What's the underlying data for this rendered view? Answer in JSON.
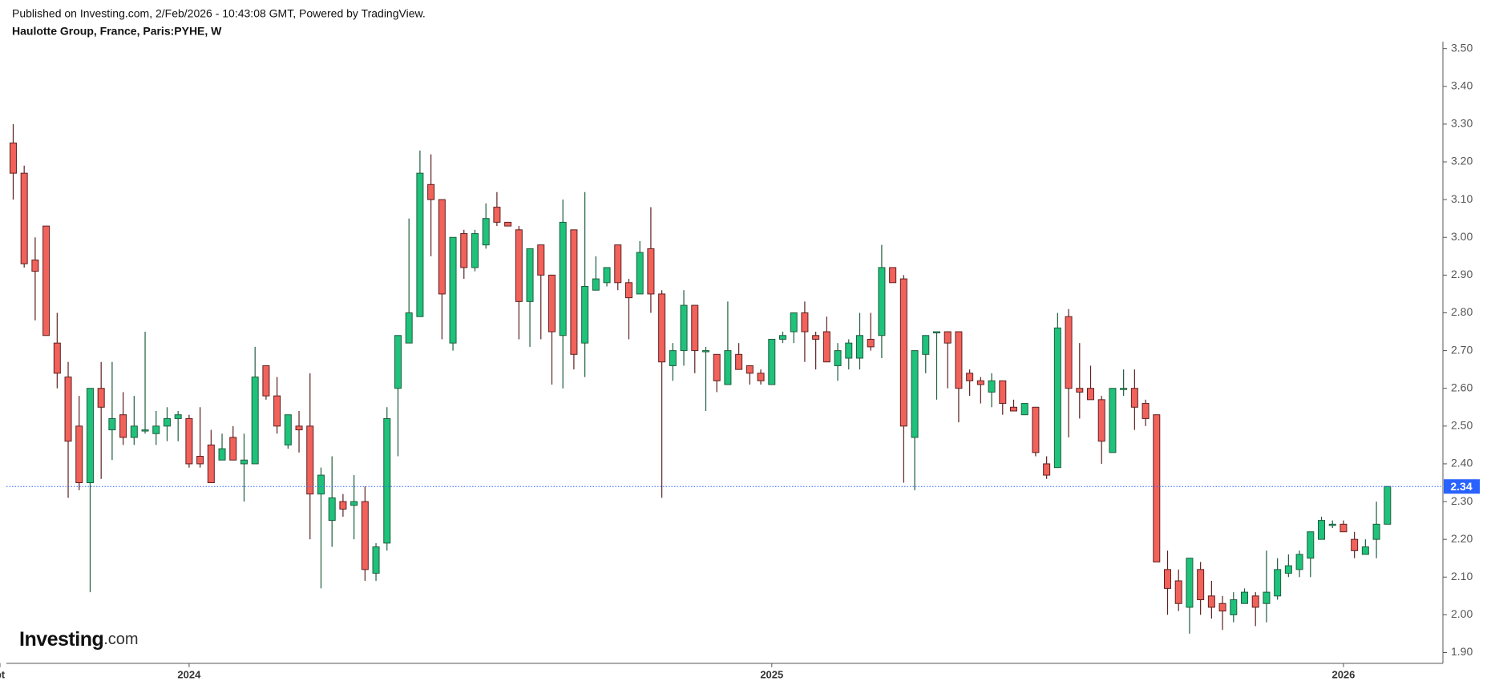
{
  "header": {
    "published": "Published on Investing.com, 2/Feb/2026 - 10:43:08 GMT, Powered by TradingView.",
    "symbol": "Haulotte Group, France, Paris:PYHE, W"
  },
  "logo": {
    "brand": "Investing",
    "suffix": ".com"
  },
  "chart_data": {
    "type": "candlestick",
    "colors": {
      "up": "#1fc27b",
      "down": "#f1625b",
      "up_border": "#1e5e3e",
      "down_border": "#5e2020",
      "wick": "#2f3a33",
      "last_price": "#2962ff"
    },
    "open": [
      3.25,
      3.17,
      2.94,
      3.03,
      2.72,
      2.63,
      2.5,
      2.35,
      2.6,
      2.49,
      2.53,
      2.47,
      2.49,
      2.48,
      2.5,
      2.52,
      2.52,
      2.42,
      2.45,
      2.41,
      2.47,
      2.4,
      2.4,
      2.66,
      2.58,
      2.45,
      2.5,
      2.5,
      2.32,
      2.25,
      2.3,
      2.29,
      2.3,
      2.11,
      2.19,
      2.6,
      2.72,
      2.79,
      3.14,
      3.1,
      2.72,
      3.01,
      2.92,
      2.98,
      3.08,
      3.04,
      3.02,
      2.83,
      2.98,
      2.9,
      2.74,
      3.02,
      2.72,
      2.86,
      2.88,
      2.98,
      2.88,
      2.85,
      2.97,
      2.85,
      2.66,
      2.7,
      2.82,
      2.7,
      2.69,
      2.61,
      2.69,
      2.66,
      2.64,
      2.61,
      2.73,
      2.75,
      2.8,
      2.74,
      2.75,
      2.66,
      2.68,
      2.68,
      2.73,
      2.74,
      2.92,
      2.89,
      2.47,
      2.69,
      2.75,
      2.75,
      2.75,
      2.64,
      2.62,
      2.59,
      2.62,
      2.55,
      2.53,
      2.55,
      2.4,
      2.39,
      2.79,
      2.6,
      2.6,
      2.57,
      2.43,
      2.6,
      2.6,
      2.56,
      2.53,
      2.12,
      2.09,
      2.02,
      2.12,
      2.05,
      2.03,
      2.0,
      2.03,
      2.05,
      2.03,
      2.05,
      2.11,
      2.12,
      2.15,
      2.2,
      2.24,
      2.24,
      2.2,
      2.16,
      2.2,
      2.24
    ],
    "high": [
      3.3,
      3.19,
      3.0,
      3.03,
      2.8,
      2.67,
      2.58,
      2.6,
      2.67,
      2.67,
      2.59,
      2.58,
      2.75,
      2.54,
      2.55,
      2.54,
      2.53,
      2.55,
      2.49,
      2.48,
      2.5,
      2.48,
      2.71,
      2.66,
      2.63,
      2.53,
      2.54,
      2.64,
      2.39,
      2.42,
      2.32,
      2.37,
      2.34,
      2.19,
      2.55,
      2.74,
      3.05,
      3.23,
      3.22,
      3.1,
      3.0,
      3.02,
      3.02,
      3.09,
      3.12,
      3.04,
      3.03,
      2.97,
      2.98,
      2.9,
      3.1,
      3.02,
      3.12,
      2.95,
      2.92,
      2.98,
      2.89,
      2.99,
      3.08,
      2.86,
      2.72,
      2.86,
      2.82,
      2.71,
      2.69,
      2.83,
      2.72,
      2.66,
      2.65,
      2.73,
      2.75,
      2.8,
      2.83,
      2.75,
      2.79,
      2.72,
      2.73,
      2.8,
      2.8,
      2.98,
      2.92,
      2.9,
      2.7,
      2.74,
      2.75,
      2.75,
      2.75,
      2.65,
      2.63,
      2.64,
      2.62,
      2.57,
      2.56,
      2.55,
      2.42,
      2.8,
      2.81,
      2.72,
      2.66,
      2.58,
      2.6,
      2.65,
      2.65,
      2.57,
      2.53,
      2.17,
      2.12,
      2.15,
      2.14,
      2.09,
      2.05,
      2.06,
      2.07,
      2.06,
      2.17,
      2.15,
      2.16,
      2.17,
      2.22,
      2.26,
      2.25,
      2.25,
      2.22,
      2.2,
      2.3,
      2.34
    ],
    "low": [
      3.1,
      2.92,
      2.78,
      2.74,
      2.6,
      2.31,
      2.33,
      2.06,
      2.36,
      2.41,
      2.45,
      2.45,
      2.48,
      2.45,
      2.46,
      2.46,
      2.39,
      2.39,
      2.35,
      2.41,
      2.41,
      2.3,
      2.4,
      2.57,
      2.48,
      2.44,
      2.43,
      2.2,
      2.07,
      2.18,
      2.26,
      2.2,
      2.09,
      2.09,
      2.17,
      2.42,
      2.72,
      2.79,
      2.95,
      2.73,
      2.7,
      2.89,
      2.91,
      2.97,
      3.03,
      3.03,
      2.73,
      2.71,
      2.73,
      2.61,
      2.6,
      2.65,
      2.63,
      2.86,
      2.87,
      2.86,
      2.73,
      2.85,
      2.8,
      2.31,
      2.62,
      2.66,
      2.64,
      2.54,
      2.59,
      2.61,
      2.65,
      2.61,
      2.61,
      2.61,
      2.72,
      2.72,
      2.67,
      2.65,
      2.67,
      2.62,
      2.65,
      2.65,
      2.7,
      2.68,
      2.88,
      2.35,
      2.33,
      2.64,
      2.57,
      2.6,
      2.51,
      2.58,
      2.56,
      2.55,
      2.53,
      2.54,
      2.53,
      2.42,
      2.36,
      2.39,
      2.47,
      2.52,
      2.57,
      2.4,
      2.43,
      2.58,
      2.49,
      2.5,
      2.14,
      2.0,
      2.01,
      1.95,
      2.0,
      1.99,
      1.96,
      1.98,
      2.03,
      1.97,
      1.98,
      2.04,
      2.1,
      2.1,
      2.1,
      2.2,
      2.23,
      2.22,
      2.15,
      2.16,
      2.15,
      2.24
    ],
    "close": [
      3.17,
      2.93,
      2.91,
      2.74,
      2.64,
      2.46,
      2.35,
      2.6,
      2.55,
      2.52,
      2.47,
      2.5,
      2.49,
      2.5,
      2.52,
      2.53,
      2.4,
      2.4,
      2.35,
      2.44,
      2.41,
      2.41,
      2.63,
      2.58,
      2.5,
      2.53,
      2.49,
      2.32,
      2.37,
      2.31,
      2.28,
      2.3,
      2.12,
      2.18,
      2.52,
      2.74,
      2.8,
      3.17,
      3.1,
      2.85,
      3.0,
      2.92,
      3.01,
      3.05,
      3.04,
      3.03,
      2.83,
      2.97,
      2.9,
      2.75,
      3.04,
      2.69,
      2.87,
      2.89,
      2.92,
      2.88,
      2.84,
      2.96,
      2.85,
      2.67,
      2.7,
      2.82,
      2.7,
      2.7,
      2.62,
      2.7,
      2.65,
      2.64,
      2.62,
      2.73,
      2.74,
      2.8,
      2.75,
      2.73,
      2.67,
      2.7,
      2.72,
      2.74,
      2.71,
      2.92,
      2.88,
      2.5,
      2.7,
      2.74,
      2.75,
      2.72,
      2.6,
      2.62,
      2.61,
      2.62,
      2.56,
      2.54,
      2.56,
      2.43,
      2.37,
      2.76,
      2.6,
      2.59,
      2.57,
      2.46,
      2.6,
      2.6,
      2.55,
      2.52,
      2.14,
      2.07,
      2.03,
      2.15,
      2.04,
      2.02,
      2.01,
      2.04,
      2.06,
      2.02,
      2.06,
      2.12,
      2.13,
      2.16,
      2.22,
      2.25,
      2.24,
      2.22,
      2.17,
      2.18,
      2.24,
      2.34
    ],
    "last_price": 2.34,
    "xlim": [
      -1.2,
      129.9
    ],
    "xticks": [
      {
        "value": -1.2,
        "label": "pt"
      },
      {
        "value": 16,
        "label": "2024"
      },
      {
        "value": 69,
        "label": "2025"
      },
      {
        "value": 121,
        "label": "2026"
      }
    ],
    "ylim": [
      1.872,
      3.528
    ],
    "yticks": [
      {
        "value": 3.5,
        "label": "3.50"
      },
      {
        "value": 3.4,
        "label": "3.40"
      },
      {
        "value": 3.3,
        "label": "3.30"
      },
      {
        "value": 3.2,
        "label": "3.20"
      },
      {
        "value": 3.1,
        "label": "3.10"
      },
      {
        "value": 3.0,
        "label": "3.00"
      },
      {
        "value": 2.9,
        "label": "2.90"
      },
      {
        "value": 2.8,
        "label": "2.80"
      },
      {
        "value": 2.7,
        "label": "2.70"
      },
      {
        "value": 2.6,
        "label": "2.60"
      },
      {
        "value": 2.5,
        "label": "2.50"
      },
      {
        "value": 2.4,
        "label": "2.40"
      },
      {
        "value": 2.3,
        "label": "2.30"
      },
      {
        "value": 2.2,
        "label": "2.20"
      },
      {
        "value": 2.1,
        "label": "2.10"
      },
      {
        "value": 2.0,
        "label": "2.00"
      },
      {
        "value": 1.9,
        "label": "1.90"
      }
    ]
  }
}
